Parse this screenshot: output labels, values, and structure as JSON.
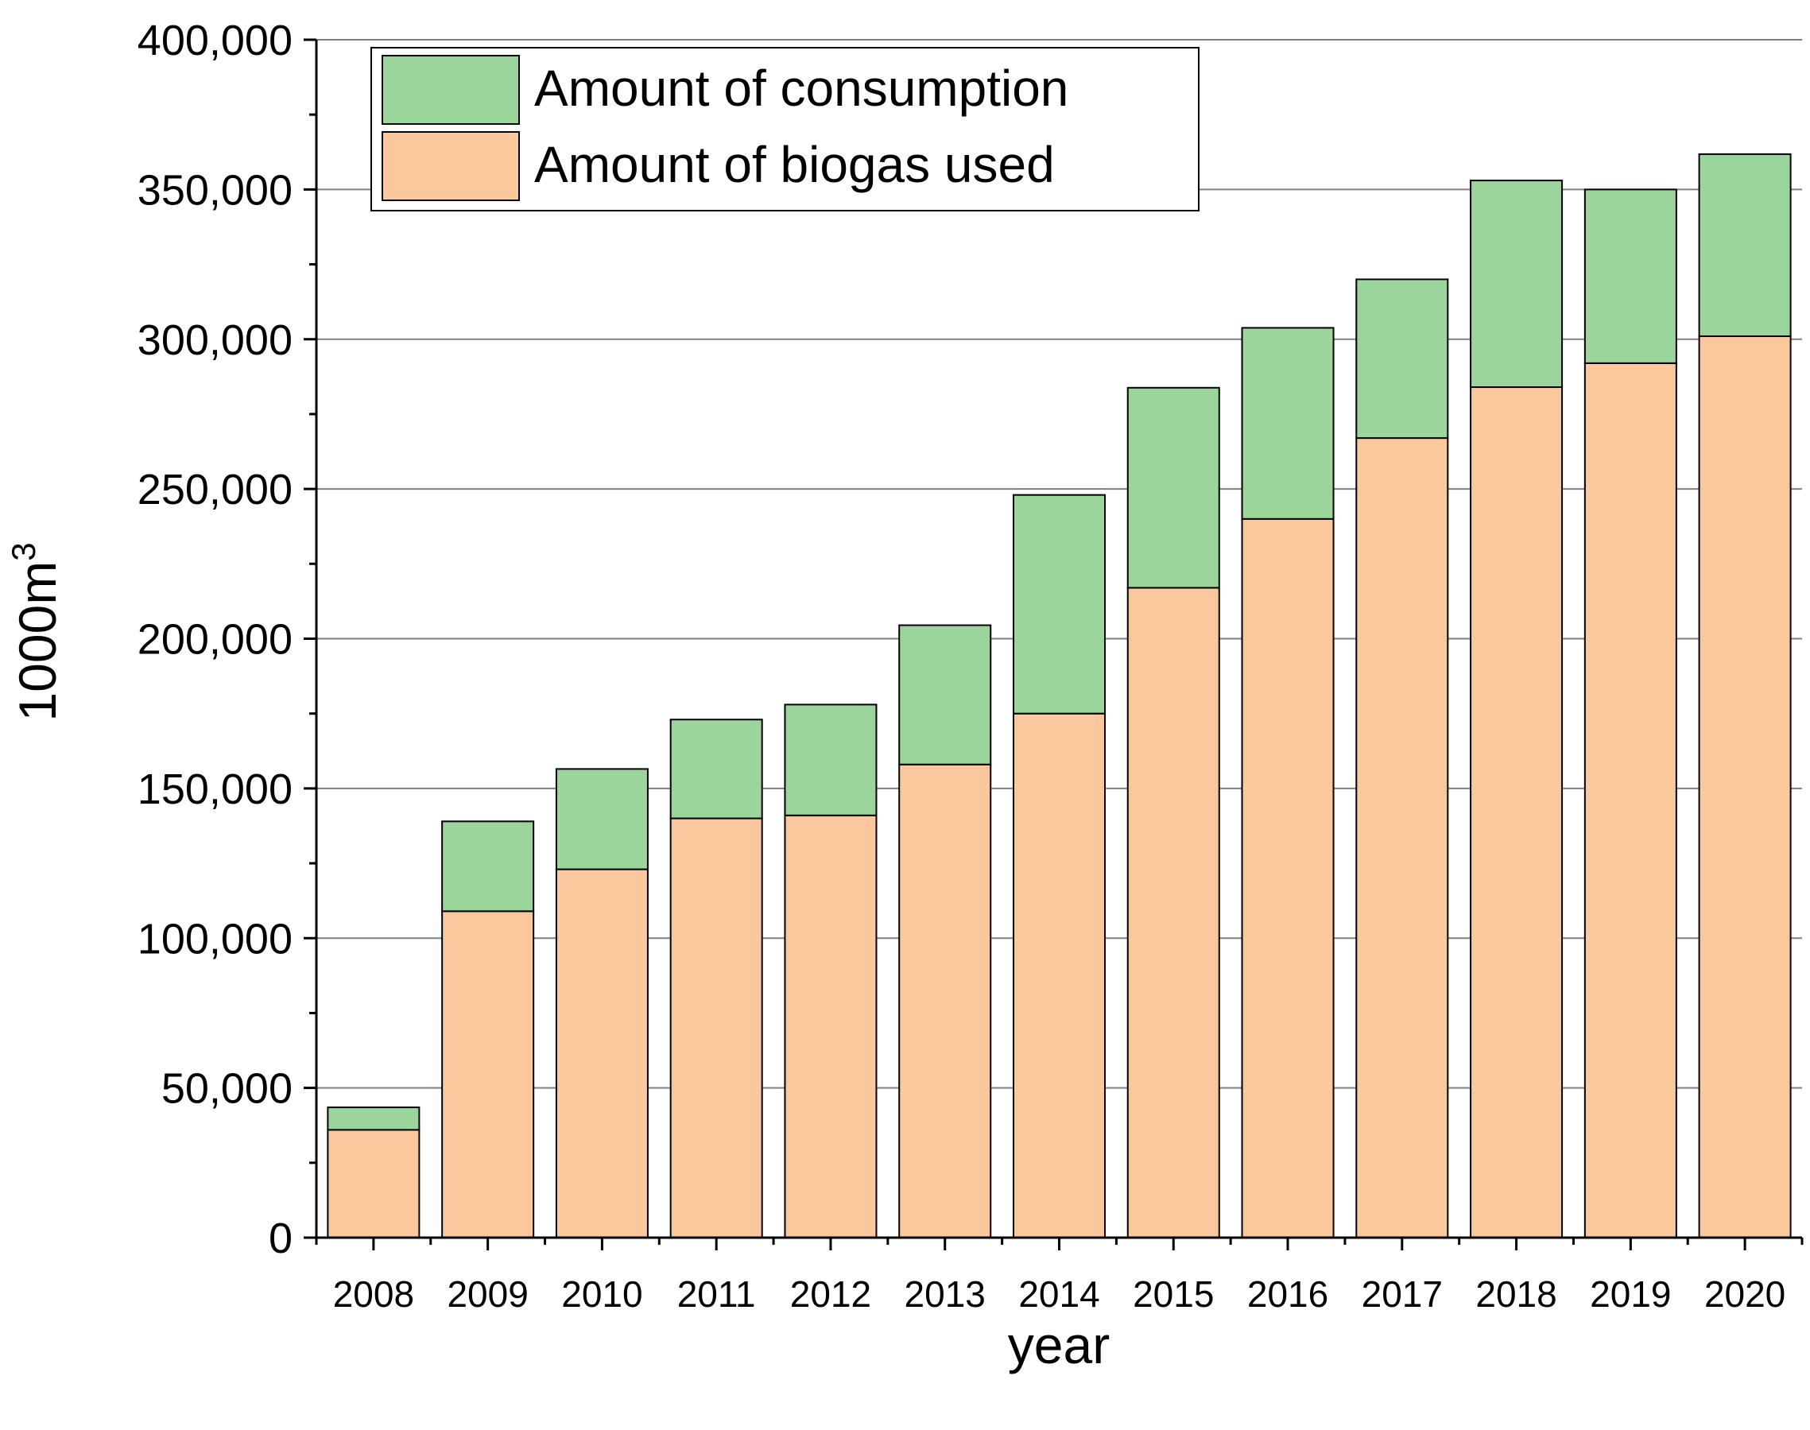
{
  "chart_data": {
    "type": "bar",
    "stacked": true,
    "categories": [
      "2008",
      "2009",
      "2010",
      "2011",
      "2012",
      "2013",
      "2014",
      "2015",
      "2016",
      "2017",
      "2018",
      "2019",
      "2020"
    ],
    "series": [
      {
        "name": "Amount of biogas used",
        "color": "#fac89c",
        "values": [
          36000,
          109000,
          123000,
          140000,
          141000,
          158000,
          175000,
          217000,
          240000,
          267000,
          284000,
          292000,
          301000
        ]
      },
      {
        "name": "Amount of consumption",
        "color": "#9bd59b",
        "values": [
          7500,
          30000,
          33500,
          33000,
          37000,
          46500,
          73000,
          66800,
          63800,
          53000,
          69000,
          58000,
          60800
        ]
      }
    ],
    "totals": [
      43500,
      139000,
      156500,
      173000,
      178000,
      204500,
      248000,
      283800,
      303800,
      320000,
      353000,
      350000,
      361800
    ],
    "legend_order": [
      "Amount of consumption",
      "Amount of biogas used"
    ],
    "legend_position": "top-left",
    "ylim": [
      0,
      400000
    ],
    "yticks": [
      0,
      50000,
      100000,
      150000,
      200000,
      250000,
      300000,
      350000,
      400000
    ],
    "ytick_labels": [
      "0",
      "50,000",
      "100,000",
      "150,000",
      "200,000",
      "250,000",
      "300,000",
      "350,000",
      "400,000"
    ],
    "ylabel": "1000m",
    "ylabel_superscript": "3",
    "xlabel": "year",
    "grid": true,
    "gridline_color": "#808080"
  }
}
